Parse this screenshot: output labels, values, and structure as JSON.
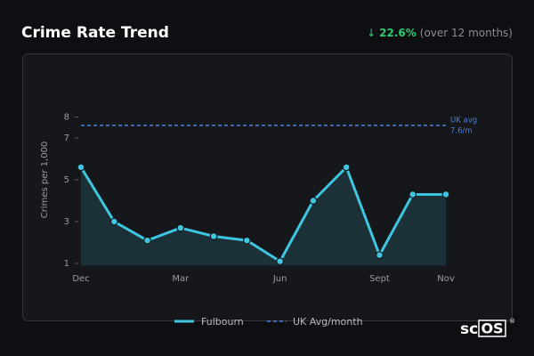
{
  "header": {
    "title": "Crime Rate Trend",
    "arrow": "↓",
    "change": "22.6%",
    "period": "(over 12 months)"
  },
  "chart_data": {
    "type": "line",
    "y_label": "Crimes per 1,000",
    "categories": [
      "Dec",
      null,
      null,
      "Mar",
      null,
      null,
      "Jun",
      null,
      null,
      "Sept",
      null,
      "Nov"
    ],
    "series": [
      {
        "name": "Fulbourn",
        "color": "#3ec6e0",
        "values": [
          5.6,
          3.0,
          2.1,
          2.7,
          2.3,
          2.1,
          1.1,
          4.0,
          5.6,
          1.4,
          4.3,
          4.3
        ]
      }
    ],
    "reference": {
      "name": "UK Avg/month",
      "value": 7.6,
      "label_lines": [
        "UK avg",
        "7.6/m"
      ],
      "color": "#4a7fe0"
    },
    "ylim": [
      0.9,
      8.6
    ],
    "yticks": [
      1,
      3,
      5,
      7,
      8
    ],
    "area": true
  },
  "logo": {
    "text": "sc",
    "boxed": "OS",
    "mark": "®"
  }
}
